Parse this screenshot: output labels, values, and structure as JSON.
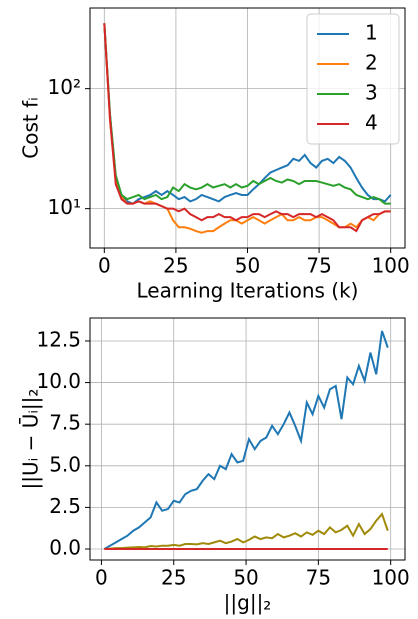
{
  "chart_data": [
    {
      "type": "line",
      "xlabel": "Learning Iterations (k)",
      "ylabel": "Cost fᵢ",
      "yscale": "log",
      "grid": true,
      "legend": "upper right",
      "xlim": [
        -5,
        105
      ],
      "ylim": [
        4.7,
        470
      ],
      "xticks": [
        0,
        25,
        50,
        75,
        100
      ],
      "yticks": [
        {
          "value": 10,
          "label": "10¹"
        },
        {
          "value": 100,
          "label": "10²"
        }
      ],
      "x": [
        0,
        2,
        4,
        6,
        8,
        10,
        12,
        14,
        16,
        18,
        20,
        22,
        24,
        26,
        28,
        30,
        32,
        34,
        36,
        38,
        40,
        42,
        44,
        46,
        48,
        50,
        52,
        54,
        56,
        58,
        60,
        62,
        64,
        66,
        68,
        70,
        72,
        74,
        76,
        78,
        80,
        82,
        84,
        86,
        88,
        90,
        92,
        94,
        96,
        98,
        100
      ],
      "series": [
        {
          "name": "1",
          "color": "#1f77b4",
          "values": [
            350,
            60,
            18,
            13,
            11.5,
            11,
            12,
            12.5,
            13,
            14,
            13,
            14,
            13,
            12,
            12.5,
            11.5,
            12,
            13,
            12.5,
            12,
            11.5,
            12.5,
            13,
            13.5,
            13,
            13,
            14.5,
            16,
            18,
            20,
            21,
            22,
            23,
            26,
            25,
            28,
            24,
            22,
            25,
            26,
            24,
            27,
            25,
            22,
            18,
            15,
            13,
            12,
            12,
            11.5,
            13
          ]
        },
        {
          "name": "2",
          "color": "#ff7f0e",
          "values": [
            350,
            55,
            17,
            12.5,
            11,
            11,
            11.5,
            11,
            11.5,
            11,
            10.5,
            10,
            8,
            7,
            7,
            6.8,
            6.5,
            6.3,
            6.5,
            6.5,
            7,
            7.5,
            8,
            8,
            7.5,
            8,
            8.5,
            8,
            7.5,
            8,
            8.5,
            9,
            8,
            8,
            8.5,
            8,
            8,
            8.5,
            8.5,
            8,
            7.5,
            7,
            7,
            7.5,
            7,
            8,
            8.5,
            8,
            9,
            9.5,
            9.5
          ]
        },
        {
          "name": "3",
          "color": "#2ca02c",
          "values": [
            350,
            60,
            19,
            13,
            12,
            12.5,
            13,
            12,
            12.5,
            13,
            12,
            12.5,
            15,
            14,
            16,
            15,
            14.5,
            15,
            16,
            15,
            15.5,
            16,
            15,
            16,
            15,
            15.5,
            17,
            16,
            17,
            18,
            17,
            16.5,
            17.5,
            17,
            16,
            17,
            17,
            17,
            16.5,
            16,
            15.5,
            16,
            15,
            14.5,
            13,
            12.5,
            12,
            12.5,
            12,
            11,
            11
          ]
        },
        {
          "name": "4",
          "color": "#d62728",
          "values": [
            350,
            55,
            16,
            12,
            11,
            11,
            11.5,
            11,
            11,
            11,
            10.5,
            10,
            10,
            9.5,
            10,
            9,
            8.5,
            8,
            8.5,
            8.5,
            9,
            8.5,
            8.5,
            8,
            8.5,
            8.5,
            9,
            9,
            8.5,
            9,
            9.5,
            9,
            9,
            8.5,
            9,
            9,
            9,
            8.5,
            9,
            8.5,
            8,
            7,
            7,
            7,
            6.5,
            8,
            8.5,
            9,
            9,
            9.5,
            9.5
          ]
        }
      ]
    },
    {
      "type": "line",
      "xlabel": "||g||₂",
      "ylabel": "||Uᵢ − Ūᵢ||₂",
      "grid": true,
      "xlim": [
        -3.95,
        104.95
      ],
      "ylim": [
        -0.66,
        13.88
      ],
      "xticks": [
        0,
        25,
        50,
        75,
        100
      ],
      "yticks": [
        {
          "value": 0,
          "label": "0.0"
        },
        2.5,
        {
          "value": 5,
          "label": "5.0"
        },
        7.5,
        {
          "value": 10,
          "label": "10.0"
        },
        12.5
      ],
      "x": [
        1,
        3,
        5,
        7,
        9,
        11,
        13,
        15,
        17,
        19,
        21,
        23,
        25,
        27,
        29,
        31,
        33,
        35,
        37,
        39,
        41,
        43,
        45,
        47,
        49,
        51,
        53,
        55,
        57,
        59,
        61,
        63,
        65,
        67,
        69,
        71,
        73,
        75,
        77,
        79,
        81,
        83,
        85,
        87,
        89,
        91,
        93,
        95,
        97,
        99
      ],
      "series": [
        {
          "color": "#1f77b4",
          "values": [
            0,
            0.2,
            0.4,
            0.6,
            0.8,
            1.1,
            1.3,
            1.6,
            1.9,
            2.8,
            2.3,
            2.4,
            2.9,
            2.8,
            3.3,
            3.5,
            3.6,
            4.1,
            4.5,
            4.2,
            5.0,
            4.8,
            5.7,
            5.2,
            5.3,
            6.6,
            6.0,
            6.5,
            6.7,
            7.4,
            6.9,
            7.5,
            8.2,
            7.4,
            6.5,
            8.8,
            8.1,
            9.2,
            8.5,
            9.6,
            9.8,
            7.8,
            10.3,
            9.9,
            11.0,
            10.1,
            11.8,
            10.5,
            13.1,
            12.1
          ]
        },
        {
          "color": "#a08a0a",
          "values": [
            0,
            0.02,
            0.05,
            0.05,
            0.08,
            0.1,
            0.12,
            0.1,
            0.18,
            0.15,
            0.2,
            0.2,
            0.25,
            0.2,
            0.3,
            0.3,
            0.28,
            0.35,
            0.3,
            0.4,
            0.5,
            0.35,
            0.45,
            0.6,
            0.4,
            0.55,
            0.75,
            0.6,
            0.7,
            0.65,
            0.9,
            0.7,
            0.8,
            0.95,
            0.75,
            1.0,
            0.85,
            1.1,
            0.9,
            1.3,
            1.0,
            1.15,
            1.4,
            0.8,
            1.5,
            0.9,
            1.2,
            1.7,
            2.1,
            1.1
          ]
        },
        {
          "color": "#d62728",
          "values": [
            0,
            0,
            0,
            0,
            0,
            0,
            0,
            0,
            0,
            0,
            0,
            0,
            0,
            0,
            0,
            0,
            0,
            0,
            0,
            0,
            0,
            0,
            0,
            0,
            0,
            0,
            0,
            0,
            0,
            0,
            0,
            0,
            0,
            0,
            0,
            0,
            0,
            0,
            0,
            0,
            0,
            0,
            0,
            0,
            0,
            0,
            0,
            0,
            0,
            0
          ]
        }
      ]
    }
  ]
}
